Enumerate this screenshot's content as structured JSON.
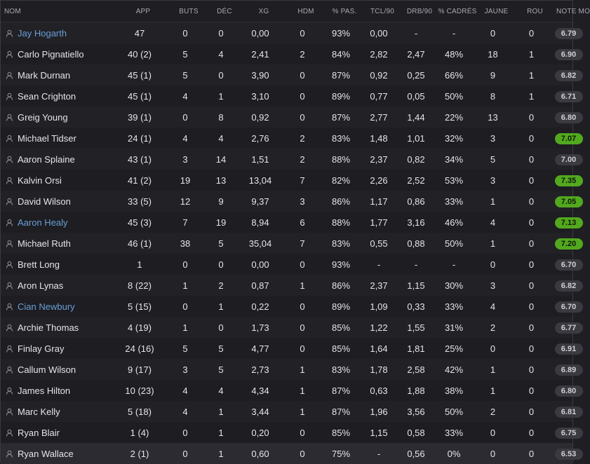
{
  "columns": {
    "name": "NOM",
    "app": "APP",
    "goals": "BUTS",
    "assists": "DÉC",
    "xg": "XG",
    "motm": "HDM",
    "pass_pct": "% PAS.",
    "tcl90": "TCL/90",
    "drb90": "DRB/90",
    "shots_on_target_pct": "% CADRÉS",
    "yellow": "JAUNE",
    "red": "ROU",
    "rating": "NOTE MO"
  },
  "rows": [
    {
      "name": "Jay Hogarth",
      "link": true,
      "app": "47",
      "goals": "0",
      "assists": "0",
      "xg": "0,00",
      "motm": "0",
      "pass_pct": "93%",
      "tcl90": "0,00",
      "drb90": "-",
      "shots_on_target_pct": "-",
      "yellow": "0",
      "red": "0",
      "rating": "6.79",
      "highlight": false
    },
    {
      "name": "Carlo Pignatiello",
      "link": false,
      "app": "40 (2)",
      "goals": "5",
      "assists": "4",
      "xg": "2,41",
      "motm": "2",
      "pass_pct": "84%",
      "tcl90": "2,82",
      "drb90": "2,47",
      "shots_on_target_pct": "48%",
      "yellow": "18",
      "red": "1",
      "rating": "6.90",
      "highlight": false
    },
    {
      "name": "Mark Durnan",
      "link": false,
      "app": "45 (1)",
      "goals": "5",
      "assists": "0",
      "xg": "3,90",
      "motm": "0",
      "pass_pct": "87%",
      "tcl90": "0,92",
      "drb90": "0,25",
      "shots_on_target_pct": "66%",
      "yellow": "9",
      "red": "1",
      "rating": "6.82",
      "highlight": false
    },
    {
      "name": "Sean Crighton",
      "link": false,
      "app": "45 (1)",
      "goals": "4",
      "assists": "1",
      "xg": "3,10",
      "motm": "0",
      "pass_pct": "89%",
      "tcl90": "0,77",
      "drb90": "0,05",
      "shots_on_target_pct": "50%",
      "yellow": "8",
      "red": "1",
      "rating": "6.71",
      "highlight": false
    },
    {
      "name": "Greig Young",
      "link": false,
      "app": "39 (1)",
      "goals": "0",
      "assists": "8",
      "xg": "0,92",
      "motm": "0",
      "pass_pct": "87%",
      "tcl90": "2,77",
      "drb90": "1,44",
      "shots_on_target_pct": "22%",
      "yellow": "13",
      "red": "0",
      "rating": "6.80",
      "highlight": false
    },
    {
      "name": "Michael Tidser",
      "link": false,
      "app": "24 (1)",
      "goals": "4",
      "assists": "4",
      "xg": "2,76",
      "motm": "2",
      "pass_pct": "83%",
      "tcl90": "1,48",
      "drb90": "1,01",
      "shots_on_target_pct": "32%",
      "yellow": "3",
      "red": "0",
      "rating": "7.07",
      "highlight": true
    },
    {
      "name": "Aaron Splaine",
      "link": false,
      "app": "43 (1)",
      "goals": "3",
      "assists": "14",
      "xg": "1,51",
      "motm": "2",
      "pass_pct": "88%",
      "tcl90": "2,37",
      "drb90": "0,82",
      "shots_on_target_pct": "34%",
      "yellow": "5",
      "red": "0",
      "rating": "7.00",
      "highlight": false
    },
    {
      "name": "Kalvin Orsi",
      "link": false,
      "app": "41 (2)",
      "goals": "19",
      "assists": "13",
      "xg": "13,04",
      "motm": "7",
      "pass_pct": "82%",
      "tcl90": "2,26",
      "drb90": "2,52",
      "shots_on_target_pct": "53%",
      "yellow": "3",
      "red": "0",
      "rating": "7.35",
      "highlight": true
    },
    {
      "name": "David Wilson",
      "link": false,
      "app": "33 (5)",
      "goals": "12",
      "assists": "9",
      "xg": "9,37",
      "motm": "3",
      "pass_pct": "86%",
      "tcl90": "1,17",
      "drb90": "0,86",
      "shots_on_target_pct": "33%",
      "yellow": "1",
      "red": "0",
      "rating": "7.05",
      "highlight": true
    },
    {
      "name": "Aaron Healy",
      "link": true,
      "app": "45 (3)",
      "goals": "7",
      "assists": "19",
      "xg": "8,94",
      "motm": "6",
      "pass_pct": "88%",
      "tcl90": "1,77",
      "drb90": "3,16",
      "shots_on_target_pct": "46%",
      "yellow": "4",
      "red": "0",
      "rating": "7.13",
      "highlight": true
    },
    {
      "name": "Michael Ruth",
      "link": false,
      "app": "46 (1)",
      "goals": "38",
      "assists": "5",
      "xg": "35,04",
      "motm": "7",
      "pass_pct": "83%",
      "tcl90": "0,55",
      "drb90": "0,88",
      "shots_on_target_pct": "50%",
      "yellow": "1",
      "red": "0",
      "rating": "7.20",
      "highlight": true
    },
    {
      "name": "Brett Long",
      "link": false,
      "app": "1",
      "goals": "0",
      "assists": "0",
      "xg": "0,00",
      "motm": "0",
      "pass_pct": "93%",
      "tcl90": "-",
      "drb90": "-",
      "shots_on_target_pct": "-",
      "yellow": "0",
      "red": "0",
      "rating": "6.70",
      "highlight": false
    },
    {
      "name": "Aron Lynas",
      "link": false,
      "app": "8 (22)",
      "goals": "1",
      "assists": "2",
      "xg": "0,87",
      "motm": "1",
      "pass_pct": "86%",
      "tcl90": "2,37",
      "drb90": "1,15",
      "shots_on_target_pct": "30%",
      "yellow": "3",
      "red": "0",
      "rating": "6.82",
      "highlight": false
    },
    {
      "name": "Cian Newbury",
      "link": true,
      "app": "5 (15)",
      "goals": "0",
      "assists": "1",
      "xg": "0,22",
      "motm": "0",
      "pass_pct": "89%",
      "tcl90": "1,09",
      "drb90": "0,33",
      "shots_on_target_pct": "33%",
      "yellow": "4",
      "red": "0",
      "rating": "6.70",
      "highlight": false
    },
    {
      "name": "Archie Thomas",
      "link": false,
      "app": "4 (19)",
      "goals": "1",
      "assists": "0",
      "xg": "1,73",
      "motm": "0",
      "pass_pct": "85%",
      "tcl90": "1,22",
      "drb90": "1,55",
      "shots_on_target_pct": "31%",
      "yellow": "2",
      "red": "0",
      "rating": "6.77",
      "highlight": false
    },
    {
      "name": "Finlay Gray",
      "link": false,
      "app": "24 (16)",
      "goals": "5",
      "assists": "5",
      "xg": "4,77",
      "motm": "0",
      "pass_pct": "85%",
      "tcl90": "1,64",
      "drb90": "1,81",
      "shots_on_target_pct": "25%",
      "yellow": "0",
      "red": "0",
      "rating": "6.91",
      "highlight": false
    },
    {
      "name": "Callum Wilson",
      "link": false,
      "app": "9 (17)",
      "goals": "3",
      "assists": "5",
      "xg": "2,73",
      "motm": "1",
      "pass_pct": "83%",
      "tcl90": "1,78",
      "drb90": "2,58",
      "shots_on_target_pct": "42%",
      "yellow": "1",
      "red": "0",
      "rating": "6.89",
      "highlight": false
    },
    {
      "name": "James Hilton",
      "link": false,
      "app": "10 (23)",
      "goals": "4",
      "assists": "4",
      "xg": "4,34",
      "motm": "1",
      "pass_pct": "87%",
      "tcl90": "0,63",
      "drb90": "1,88",
      "shots_on_target_pct": "38%",
      "yellow": "1",
      "red": "0",
      "rating": "6.80",
      "highlight": false
    },
    {
      "name": "Marc Kelly",
      "link": false,
      "app": "5 (18)",
      "goals": "4",
      "assists": "1",
      "xg": "3,44",
      "motm": "1",
      "pass_pct": "87%",
      "tcl90": "1,96",
      "drb90": "3,56",
      "shots_on_target_pct": "50%",
      "yellow": "2",
      "red": "0",
      "rating": "6.81",
      "highlight": false
    },
    {
      "name": "Ryan Blair",
      "link": false,
      "app": "1 (4)",
      "goals": "0",
      "assists": "1",
      "xg": "0,20",
      "motm": "0",
      "pass_pct": "85%",
      "tcl90": "1,15",
      "drb90": "0,58",
      "shots_on_target_pct": "33%",
      "yellow": "0",
      "red": "0",
      "rating": "6.75",
      "highlight": false
    },
    {
      "name": "Ryan Wallace",
      "link": false,
      "app": "2 (1)",
      "goals": "0",
      "assists": "1",
      "xg": "0,60",
      "motm": "0",
      "pass_pct": "75%",
      "tcl90": "-",
      "drb90": "0,56",
      "shots_on_target_pct": "0%",
      "yellow": "0",
      "red": "0",
      "rating": "6.53",
      "highlight": false
    }
  ],
  "icons": {
    "player": "person-icon"
  },
  "colors": {
    "link": "#6b9fd6",
    "rating_good": "#52a81e",
    "rating_neutral": "#3a3a40"
  }
}
